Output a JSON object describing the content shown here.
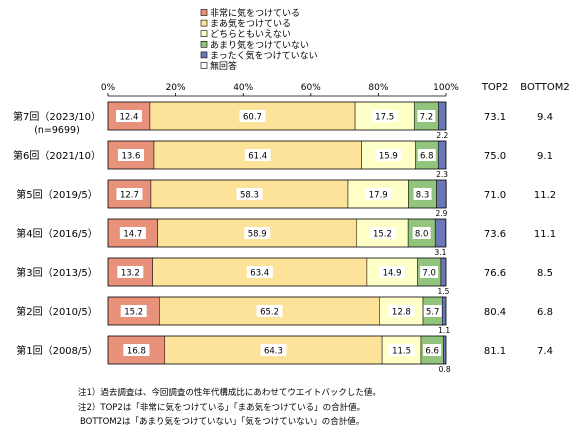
{
  "chart_data": {
    "type": "bar",
    "stacked": "horizontal-100-percent",
    "categories": [
      "第7回（2023/10）",
      "第6回（2021/10）",
      "第5回（2019/5）",
      "第4回（2016/5）",
      "第3回（2013/5）",
      "第2回（2010/5）",
      "第1回（2008/5）"
    ],
    "category_sublabels": [
      "(n=9699)",
      "",
      "",
      "",
      "",
      "",
      ""
    ],
    "series": [
      {
        "name": "非常に気をつけている",
        "color": "#e8927c",
        "values": [
          12.4,
          13.6,
          12.7,
          14.7,
          13.2,
          15.2,
          16.8
        ]
      },
      {
        "name": "まあ気をつけている",
        "color": "#fde39a",
        "values": [
          60.7,
          61.4,
          58.3,
          58.9,
          63.4,
          65.2,
          64.3
        ]
      },
      {
        "name": "どちらともいえない",
        "color": "#ffffc8",
        "values": [
          17.5,
          15.9,
          17.9,
          15.2,
          14.9,
          12.8,
          11.5
        ]
      },
      {
        "name": "あまり気をつけていない",
        "color": "#93c47d",
        "values": [
          7.2,
          6.8,
          8.3,
          8.0,
          7.0,
          5.7,
          6.6
        ]
      },
      {
        "name": "まったく気をつけていない",
        "color": "#6a78b7",
        "values": [
          2.2,
          2.3,
          2.9,
          3.1,
          1.5,
          1.1,
          0.8
        ]
      },
      {
        "name": "無回答",
        "color": "#ffffff",
        "values": [
          0.0,
          0.0,
          0.0,
          0.0,
          0.0,
          0.0,
          0.0
        ]
      }
    ],
    "xlim": [
      0,
      100
    ],
    "x_ticks": [
      "0%",
      "20%",
      "40%",
      "60%",
      "80%",
      "100%"
    ],
    "legend_position": "top",
    "grid": false,
    "top2_header": "TOP2",
    "bottom2_header": "BOTTOM2",
    "top2": [
      "73.1",
      "75.0",
      "71.0",
      "73.6",
      "76.6",
      "80.4",
      "81.1"
    ],
    "bottom2": [
      "9.4",
      "9.1",
      "11.2",
      "11.1",
      "8.5",
      "6.8",
      "7.4"
    ]
  },
  "notes": [
    "注1）過去調査は、今回調査の性年代構成比にあわせてウエイトバックした値。",
    "注2）TOP2は「非常に気をつけている」「まあ気をつけている」の合計値。",
    "BOTTOM2は「あまり気をつけていない」「気をつけていない」の合計値。"
  ]
}
